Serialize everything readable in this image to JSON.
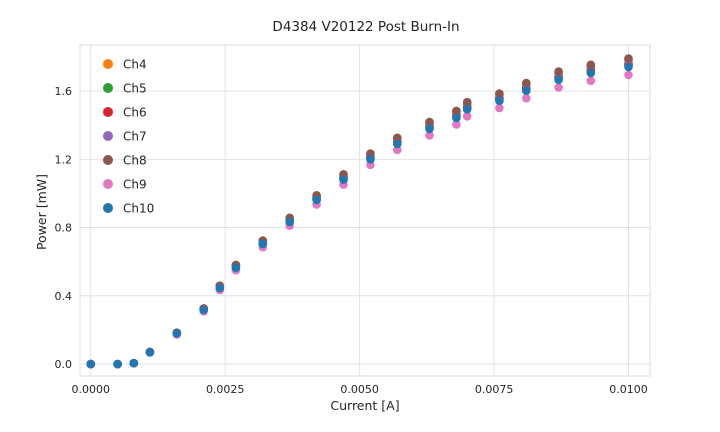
{
  "chart_data": {
    "type": "scatter",
    "title": "D4384 V20122 Post Burn-In",
    "xlabel": "Current [A]",
    "ylabel": "Power [mW]",
    "xlim": [
      -0.0002,
      0.0104
    ],
    "ylim": [
      -0.07,
      1.87
    ],
    "xticks": [
      0.0,
      0.0025,
      0.005,
      0.0075,
      0.01
    ],
    "xtick_labels": [
      "0.0000",
      "0.0025",
      "0.0050",
      "0.0075",
      "0.0100"
    ],
    "yticks": [
      0.0,
      0.4,
      0.8,
      1.2,
      1.6
    ],
    "ytick_labels": [
      "0.0",
      "0.4",
      "0.8",
      "1.2",
      "1.6"
    ],
    "grid": true,
    "legend_position": "upper left",
    "x": [
      0.0,
      0.0005,
      0.0008,
      0.0011,
      0.0016,
      0.0021,
      0.0024,
      0.0027,
      0.0032,
      0.0037,
      0.0042,
      0.0047,
      0.0052,
      0.0057,
      0.0063,
      0.0068,
      0.007,
      0.0076,
      0.0081,
      0.0087,
      0.0093,
      0.01
    ],
    "series": [
      {
        "name": "Ch4",
        "color": "#ff7f0e",
        "values": [
          0.0,
          0.0,
          0.005,
          0.07,
          0.181,
          0.322,
          0.452,
          0.573,
          0.714,
          0.844,
          0.975,
          1.095,
          1.216,
          1.307,
          1.397,
          1.462,
          1.513,
          1.563,
          1.623,
          1.688,
          1.729,
          1.764
        ]
      },
      {
        "name": "Ch5",
        "color": "#2ca02c",
        "values": [
          0.0,
          0.0,
          0.005,
          0.07,
          0.18,
          0.319,
          0.449,
          0.569,
          0.709,
          0.838,
          0.968,
          1.088,
          1.208,
          1.297,
          1.387,
          1.452,
          1.502,
          1.552,
          1.612,
          1.677,
          1.717,
          1.751
        ]
      },
      {
        "name": "Ch6",
        "color": "#d62728",
        "values": [
          0.0,
          0.0,
          0.005,
          0.07,
          0.18,
          0.32,
          0.45,
          0.57,
          0.71,
          0.84,
          0.97,
          1.09,
          1.21,
          1.3,
          1.39,
          1.455,
          1.505,
          1.555,
          1.615,
          1.68,
          1.72,
          1.755
        ]
      },
      {
        "name": "Ch7",
        "color": "#9467bd",
        "values": [
          0.0,
          0.0,
          0.005,
          0.071,
          0.183,
          0.325,
          0.457,
          0.579,
          0.721,
          0.853,
          0.985,
          1.106,
          1.228,
          1.32,
          1.411,
          1.477,
          1.528,
          1.578,
          1.639,
          1.705,
          1.746,
          1.781
        ]
      },
      {
        "name": "Ch8",
        "color": "#8c564b",
        "values": [
          0.0,
          0.0,
          0.005,
          0.071,
          0.184,
          0.326,
          0.459,
          0.581,
          0.724,
          0.857,
          0.989,
          1.112,
          1.234,
          1.326,
          1.418,
          1.484,
          1.535,
          1.586,
          1.647,
          1.714,
          1.754,
          1.79
        ]
      },
      {
        "name": "Ch9",
        "color": "#e377c2",
        "values": [
          0.0,
          0.0,
          0.005,
          0.068,
          0.174,
          0.309,
          0.434,
          0.55,
          0.685,
          0.811,
          0.936,
          1.052,
          1.168,
          1.255,
          1.341,
          1.404,
          1.452,
          1.501,
          1.558,
          1.621,
          1.66,
          1.694
        ]
      },
      {
        "name": "Ch10",
        "color": "#1f77b4",
        "values": [
          0.0,
          0.0,
          0.005,
          0.069,
          0.179,
          0.317,
          0.446,
          0.565,
          0.704,
          0.833,
          0.962,
          1.081,
          1.2,
          1.29,
          1.379,
          1.443,
          1.493,
          1.543,
          1.602,
          1.666,
          1.706,
          1.741
        ]
      }
    ],
    "style": {
      "grid_color": "#e2e2e2",
      "tick_label_color": "#3b3b3b",
      "marker_radius": 4.3
    }
  }
}
